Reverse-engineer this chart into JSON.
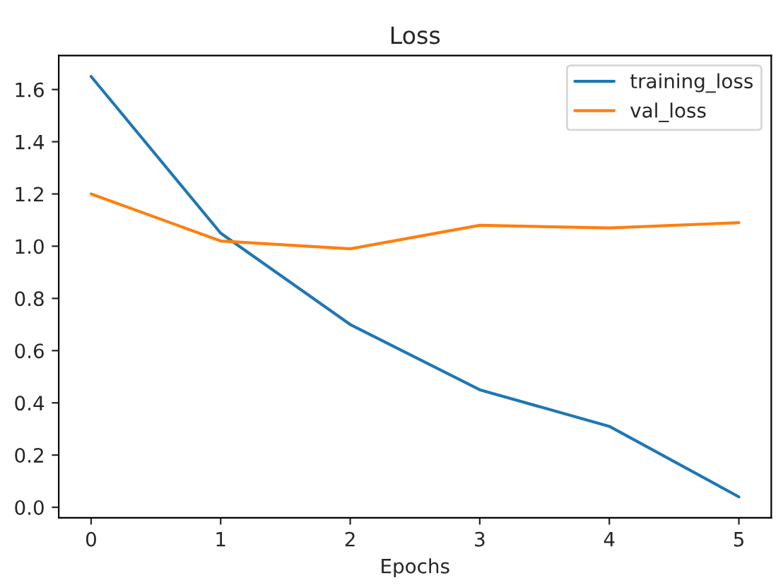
{
  "chart_data": {
    "type": "line",
    "title": "Loss",
    "xlabel": "Epochs",
    "x": [
      0,
      1,
      2,
      3,
      4,
      5
    ],
    "series": [
      {
        "name": "training_loss",
        "color": "#1f77b4",
        "values": [
          1.65,
          1.05,
          0.7,
          0.45,
          0.31,
          0.04
        ]
      },
      {
        "name": "val_loss",
        "color": "#ff7f0e",
        "values": [
          1.2,
          1.02,
          0.99,
          1.08,
          1.07,
          1.09
        ]
      }
    ],
    "xlim": [
      -0.25,
      5.25
    ],
    "xticks": [
      0,
      1,
      2,
      3,
      4,
      5
    ],
    "ylim": [
      -0.04,
      1.73
    ],
    "yticks": [
      {
        "value": 0,
        "label": "0.0"
      },
      {
        "value": 0.2,
        "label": "0.2"
      },
      {
        "value": 0.4,
        "label": "0.4"
      },
      {
        "value": 0.6,
        "label": "0.6"
      },
      {
        "value": 0.8,
        "label": "0.8"
      },
      {
        "value": 1.0,
        "label": "1.0"
      },
      {
        "value": 1.2,
        "label": "1.2"
      },
      {
        "value": 1.4,
        "label": "1.4"
      },
      {
        "value": 1.6,
        "label": "1.6"
      }
    ],
    "grid": false,
    "legend": "top right",
    "marker": "none",
    "line_style": "solid"
  }
}
